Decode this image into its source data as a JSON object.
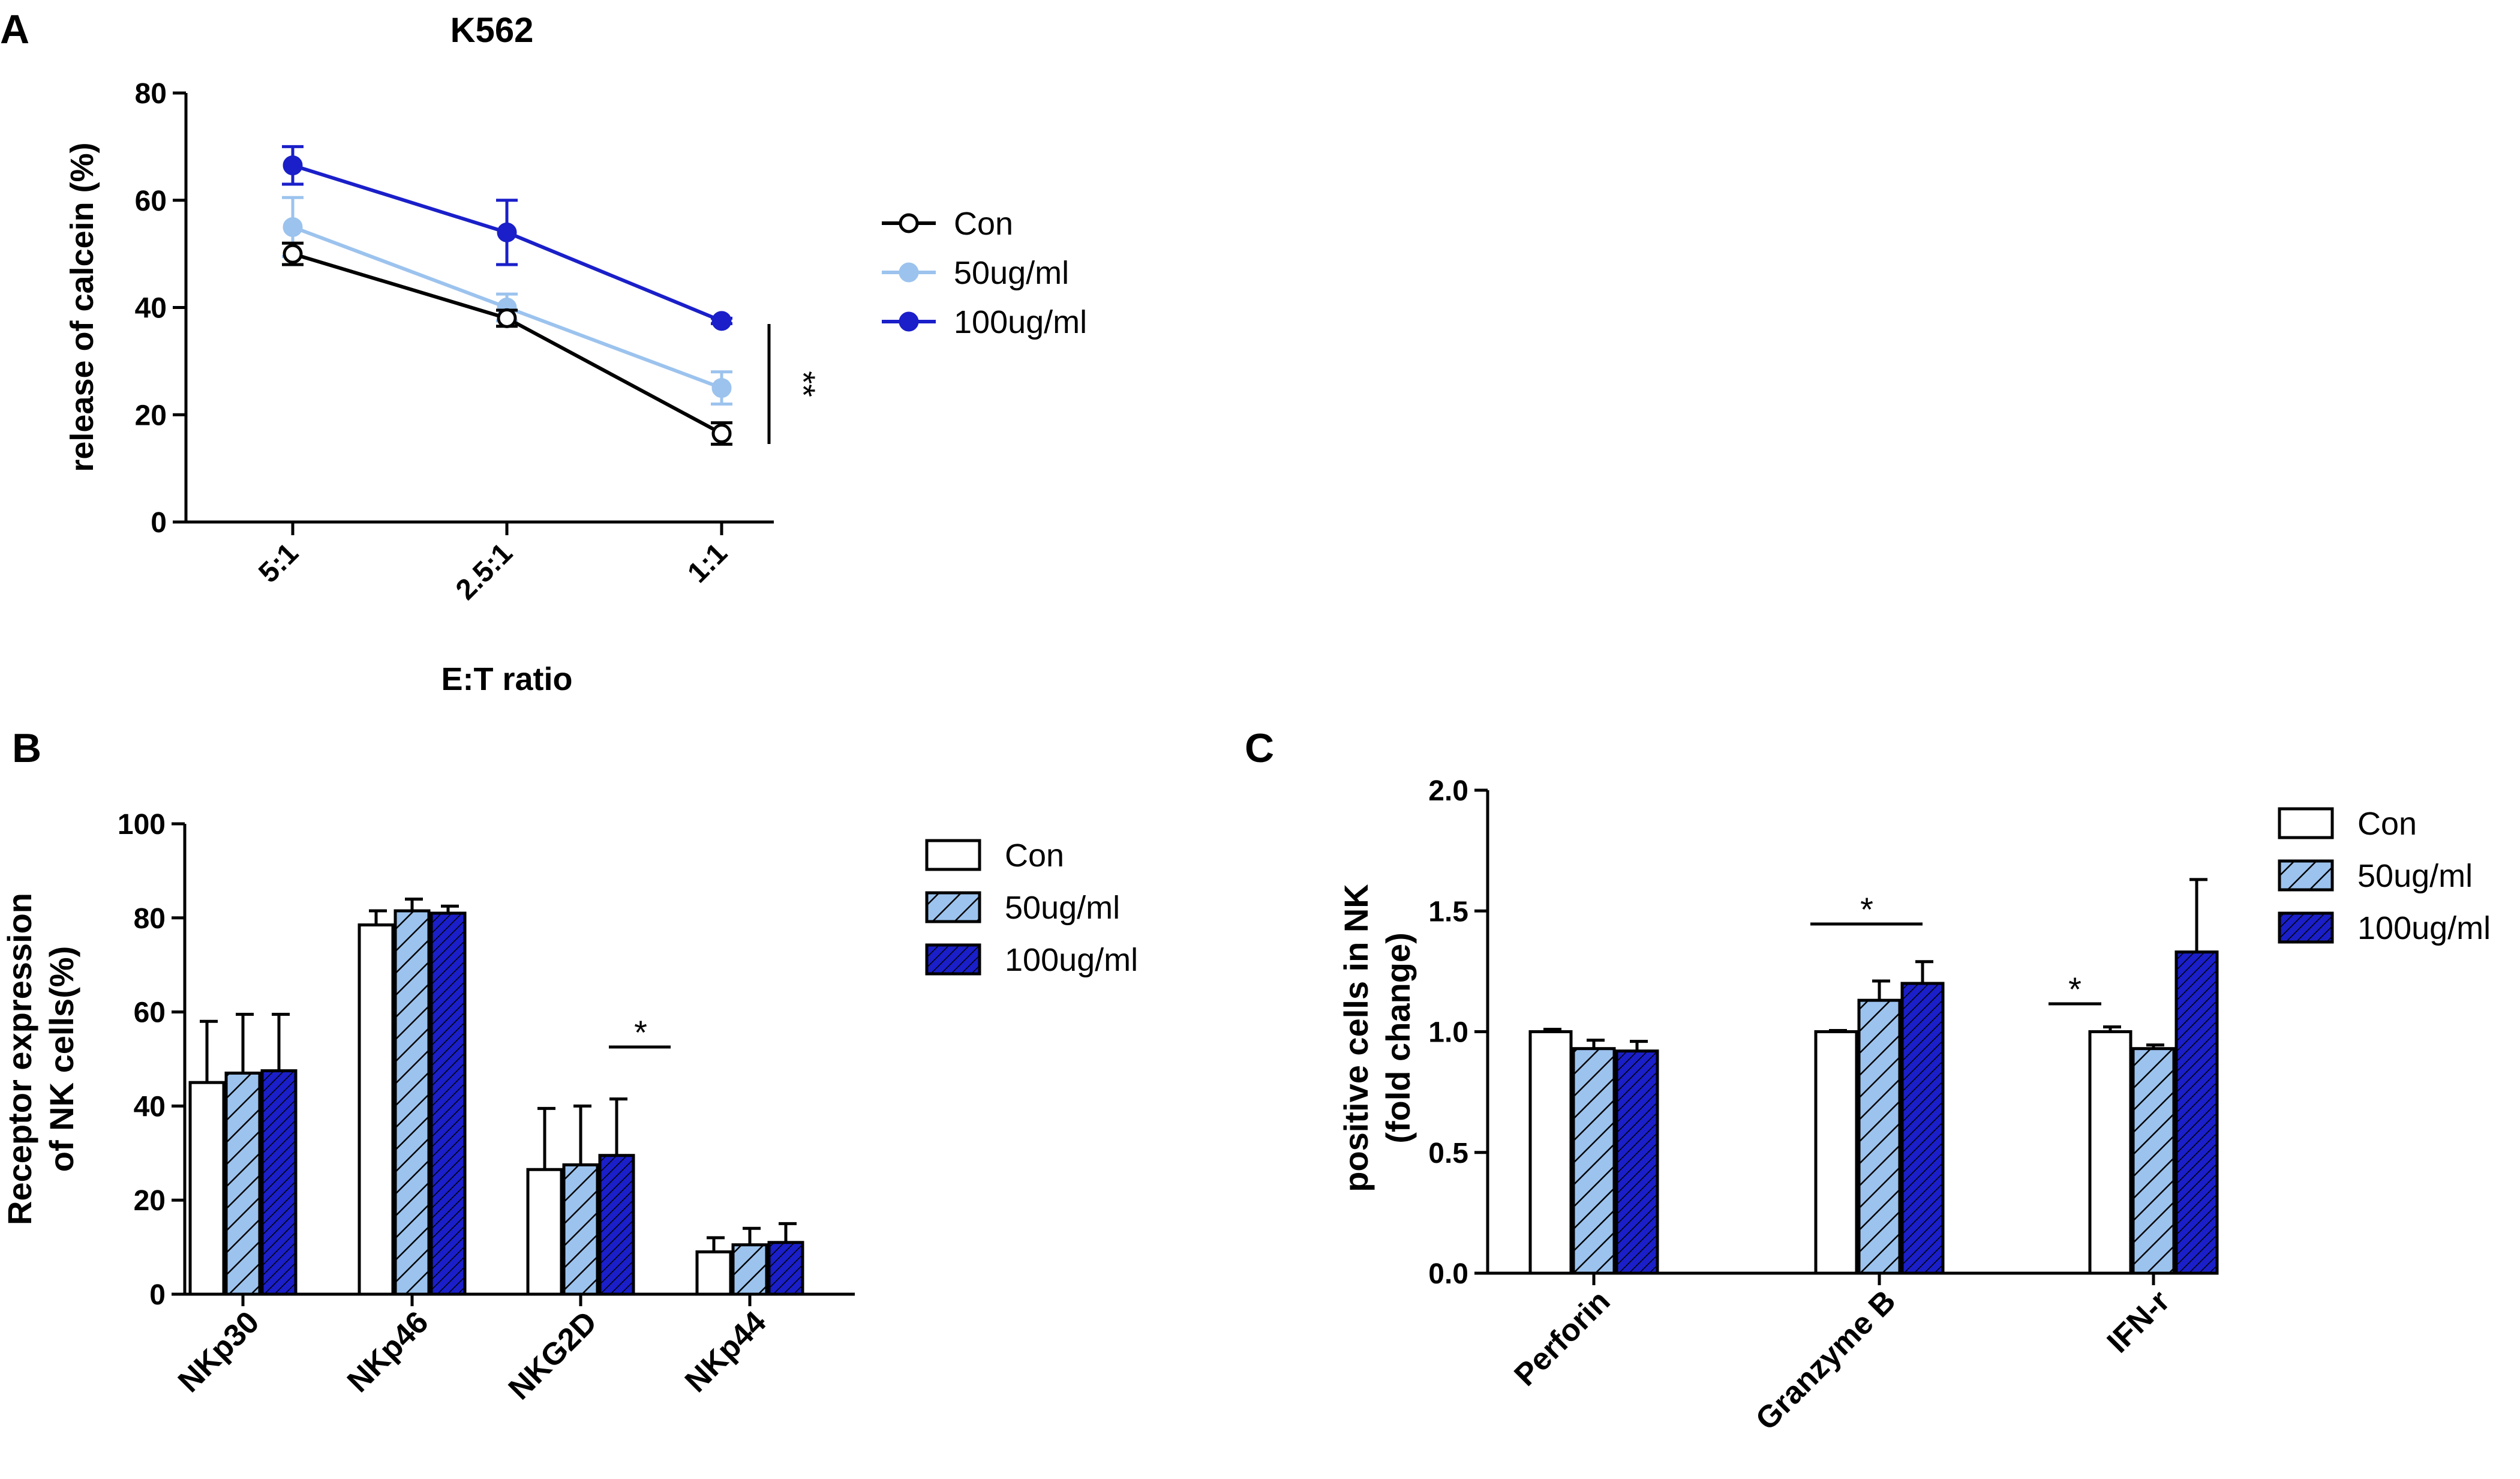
{
  "colors": {
    "con": "#ffffff",
    "c50": "#9cc3ee",
    "c100": "#1a1fc9",
    "c50_line": "#9cc3ee",
    "c100_line": "#1a1fc9",
    "axis": "#000000"
  },
  "chart_data": [
    {
      "panel": "A",
      "type": "line",
      "title": "K562",
      "xlabel": "E:T ratio",
      "ylabel": "release of calcein (%)",
      "categories": [
        "5:1",
        "2.5:1",
        "1:1"
      ],
      "ylim": [
        0,
        80
      ],
      "yticks": [
        "0",
        "20",
        "40",
        "60",
        "80"
      ],
      "series": [
        {
          "name": "Con",
          "values": [
            50,
            38,
            16.5
          ],
          "err": [
            2,
            1.5,
            2
          ],
          "color_key": "con",
          "marker": "open-circle"
        },
        {
          "name": "50ug/ml",
          "values": [
            55,
            40,
            25
          ],
          "err": [
            5.5,
            2.5,
            3
          ],
          "color_key": "c50",
          "marker": "filled-circle"
        },
        {
          "name": "100ug/ml",
          "values": [
            66.5,
            54,
            37.5
          ],
          "err": [
            3.5,
            6,
            0.5
          ],
          "color_key": "c100",
          "marker": "filled-circle"
        }
      ],
      "significance": "**"
    },
    {
      "panel": "B",
      "type": "bar",
      "ylabel": "Receptor expression of NK cells(%)",
      "ylabel_lines": [
        "Receptor expression",
        "of NK cells(%)"
      ],
      "categories": [
        "NKp30",
        "NKp46",
        "NKG2D",
        "NKp44"
      ],
      "ylim": [
        0,
        100
      ],
      "yticks": [
        "0",
        "20",
        "40",
        "60",
        "80",
        "100"
      ],
      "series": [
        {
          "name": "Con",
          "values": [
            45,
            78.5,
            26.5,
            9
          ],
          "err": [
            13,
            3,
            13,
            3
          ],
          "pattern": "con"
        },
        {
          "name": "50ug/ml",
          "values": [
            47,
            81.5,
            27.5,
            10.5
          ],
          "err": [
            12.5,
            2.5,
            12.5,
            3.5
          ],
          "pattern": "c50"
        },
        {
          "name": "100ug/ml",
          "values": [
            47.5,
            81,
            29.5,
            11
          ],
          "err": [
            12,
            1.5,
            12,
            4
          ],
          "pattern": "c100"
        }
      ],
      "significance": {
        "label": "*",
        "category": "NKG2D"
      }
    },
    {
      "panel": "C",
      "type": "bar",
      "ylabel": "positive cells in NK (fold change)",
      "ylabel_lines": [
        "positive cells in NK",
        "(fold change)"
      ],
      "categories": [
        "Perforin",
        "Granzyme B",
        "IFN-r"
      ],
      "ylim": [
        0,
        2.0
      ],
      "yticks": [
        "0.0",
        "0.5",
        "1.0",
        "1.5",
        "2.0"
      ],
      "series": [
        {
          "name": "Con",
          "values": [
            1.0,
            1.0,
            1.0
          ],
          "err": [
            0.01,
            0.005,
            0.02
          ],
          "pattern": "con"
        },
        {
          "name": "50ug/ml",
          "values": [
            0.93,
            1.13,
            0.93
          ],
          "err": [
            0.035,
            0.08,
            0.015
          ],
          "pattern": "c50"
        },
        {
          "name": "100ug/ml",
          "values": [
            0.92,
            1.2,
            1.33
          ],
          "err": [
            0.04,
            0.09,
            0.3
          ],
          "pattern": "c100"
        }
      ],
      "significance": [
        {
          "label": "*",
          "category": "Granzyme B"
        },
        {
          "label": "*",
          "category": "IFN-r"
        }
      ]
    }
  ]
}
